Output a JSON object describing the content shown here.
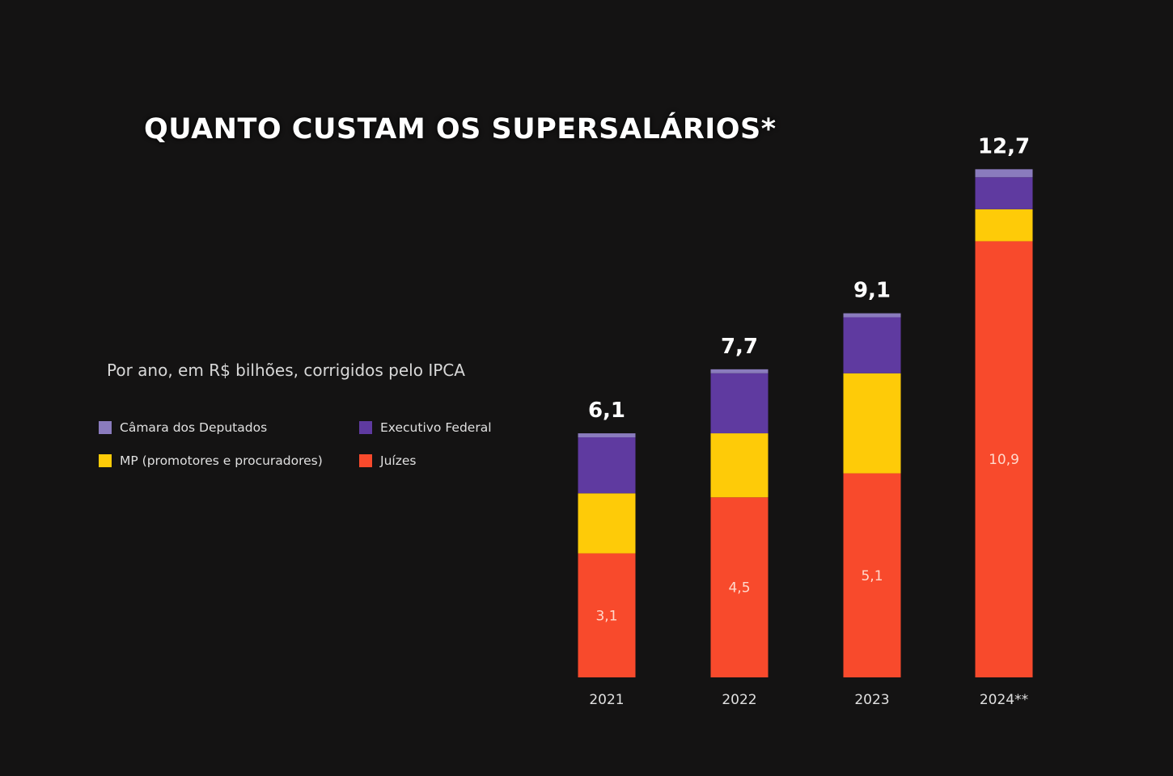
{
  "chart_data": {
    "type": "bar",
    "stacked": true,
    "title": "QUANTO CUSTAM OS SUPERSALÁRIOS*",
    "subtitle": "Por ano, em R$ bilhões, corrigidos pelo IPCA",
    "categories": [
      "2021",
      "2022",
      "2023",
      "2024**"
    ],
    "totals": [
      6.1,
      7.7,
      9.1,
      12.7
    ],
    "total_labels": [
      "6,1",
      "7,7",
      "9,1",
      "12,7"
    ],
    "series": [
      {
        "name": "Juízes",
        "color": "#f84a2c",
        "values": [
          3.1,
          4.5,
          5.1,
          10.9
        ],
        "labels": [
          "3,1",
          "4,5",
          "5,1",
          "10,9"
        ]
      },
      {
        "name": "MP (promotores e procuradores)",
        "color": "#fecb08",
        "values": [
          1.5,
          1.6,
          2.5,
          0.8
        ]
      },
      {
        "name": "Executivo Federal",
        "color": "#5f3aa0",
        "values": [
          1.4,
          1.5,
          1.4,
          0.8
        ]
      },
      {
        "name": "Câmara dos Deputados",
        "color": "#8a7bbd",
        "values": [
          0.1,
          0.1,
          0.1,
          0.2
        ]
      }
    ],
    "legend_order": [
      3,
      2,
      1,
      0
    ],
    "legend_position": "left",
    "grid": false,
    "ylim": [
      0,
      12.7
    ]
  }
}
